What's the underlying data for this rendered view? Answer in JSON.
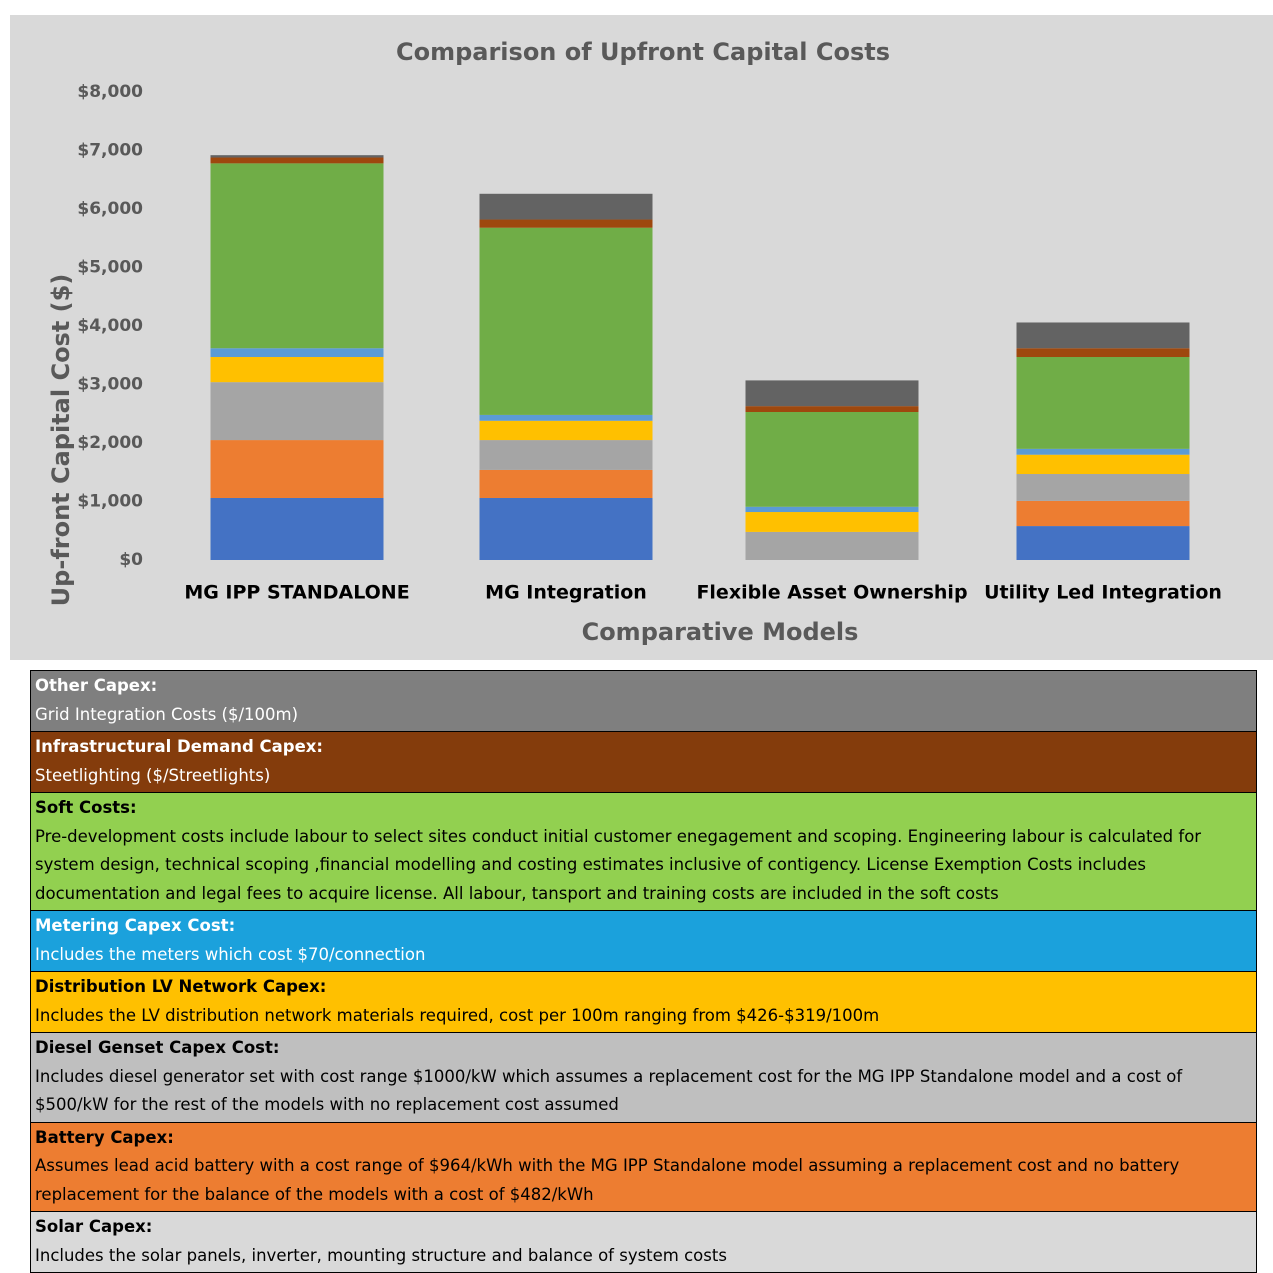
{
  "chart_data": {
    "type": "stacked_bar",
    "title": "Comparison of Upfront Capital Costs",
    "x_label": "Comparative Models",
    "y_label": "Up-front Capital Cost  ($)",
    "categories": [
      "MG IPP STANDALONE",
      "MG Integration",
      "Flexible Asset Ownership",
      "Utility Led Integration"
    ],
    "ylim": [
      0,
      8000
    ],
    "yticks": [
      {
        "value": 0,
        "label": "$0"
      },
      {
        "value": 1000,
        "label": "$1,000"
      },
      {
        "value": 2000,
        "label": "$2,000"
      },
      {
        "value": 3000,
        "label": "$3,000"
      },
      {
        "value": 4000,
        "label": "$4,000"
      },
      {
        "value": 5000,
        "label": "$5,000"
      },
      {
        "value": 6000,
        "label": "$6,000"
      },
      {
        "value": 7000,
        "label": "$7,000"
      },
      {
        "value": 8000,
        "label": "$8,000"
      }
    ],
    "series": [
      {
        "name": "Solar Capex:",
        "description": "Includes the solar panels, inverter, mounting structure and balance of system costs",
        "color": "#4472c4",
        "legend_color": "#d9d9d9",
        "legend_text_color": "#000000",
        "values": [
          1060,
          1060,
          0,
          580
        ]
      },
      {
        "name": "Battery Capex:",
        "description": "Assumes lead acid battery  with a cost range of $964/kWh with the MG IPP Standalone model assuming a replacement cost and no battery replacement for the balance of the models with a cost of $482/kWh",
        "color": "#ed7d31",
        "legend_color": "#ed7d31",
        "legend_text_color": "#000000",
        "values": [
          990,
          480,
          0,
          430
        ]
      },
      {
        "name": "Diesel Genset Capex Cost:",
        "description": "Includes diesel generator set  with cost range $1000/kW which assumes a replacement cost for the MG IPP Standalone model and a cost of $500/kW for the rest of the models with no replacement cost assumed",
        "color": "#a5a5a5",
        "legend_color": "#bfbfbf",
        "legend_text_color": "#000000",
        "values": [
          990,
          510,
          480,
          460
        ]
      },
      {
        "name": "Distribution LV Network Capex:",
        "description": "Includes the LV distribution network materials required, cost per 100m ranging from $426-$319/100m",
        "color": "#ffc000",
        "legend_color": "#ffc000",
        "legend_text_color": "#000000",
        "values": [
          430,
          330,
          340,
          330
        ]
      },
      {
        "name": "Metering Capex Cost:",
        "description": "Includes the meters which cost $70/connection",
        "color": "#5b9bd5",
        "legend_color": "#1ba1dc",
        "legend_text_color": "#ffffff",
        "values": [
          150,
          100,
          90,
          100
        ]
      },
      {
        "name": "Soft Costs:",
        "description": "Pre-development costs include labour to select sites  conduct initial customer enegagement and scoping. Engineering labour is calculated for system design, technical scoping ,financial modelling and costing estimates inclusive of contigency. License Exemption Costs includes documentation and legal fees to acquire license. All labour, tansport and training costs are included in the soft costs",
        "color": "#70ad47",
        "legend_color": "#92d050",
        "legend_text_color": "#000000",
        "values": [
          3160,
          3200,
          1620,
          1570
        ]
      },
      {
        "name": "Infrastructural Demand Capex:",
        "description": "Steetlighting ($/Streetlights)",
        "color": "#9e480e",
        "legend_color": "#843c0c",
        "legend_text_color": "#ffffff",
        "values": [
          100,
          140,
          100,
          150
        ]
      },
      {
        "name": "Other Capex:",
        "description": "Grid Integration Costs ($/100m)",
        "color": "#636363",
        "legend_color": "#7f7f7f",
        "legend_text_color": "#ffffff",
        "values": [
          40,
          440,
          440,
          440
        ]
      }
    ]
  }
}
